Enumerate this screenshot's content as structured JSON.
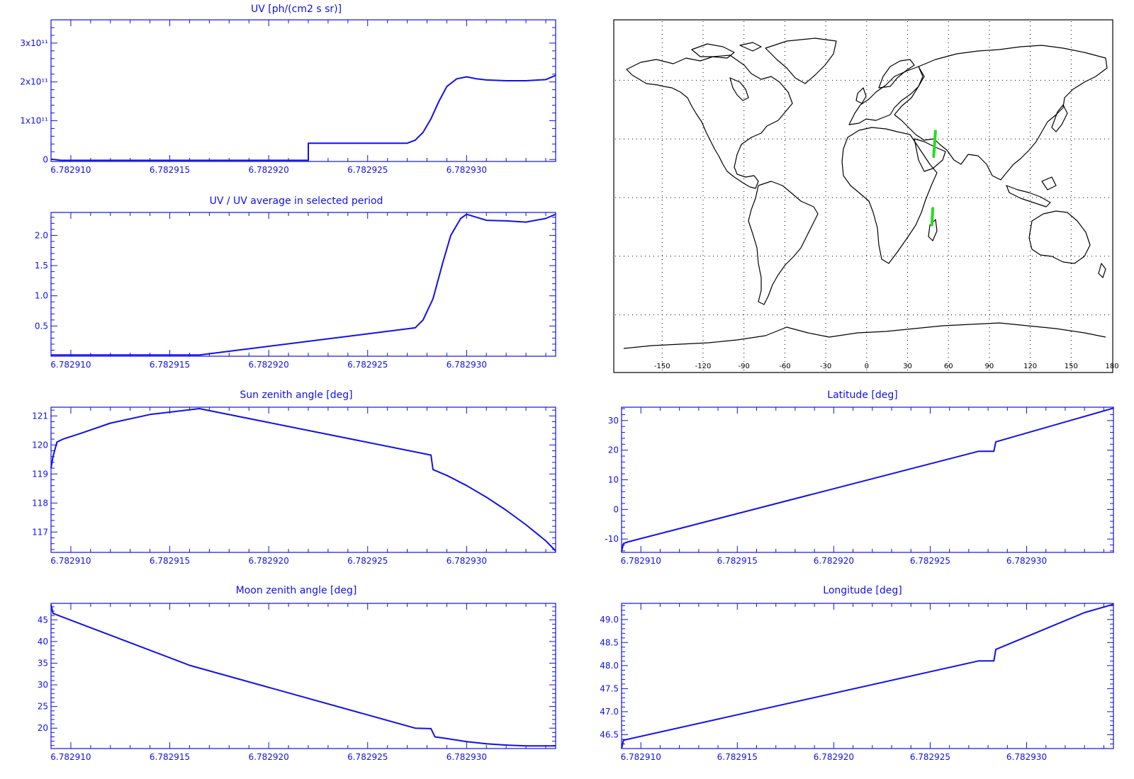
{
  "chart_data": [
    {
      "id": "uv",
      "type": "line",
      "title": "UV [ph/(cm2 s sr)]",
      "xlim": [
        6.782909,
        6.7829345
      ],
      "ylim": [
        -5000000000.0,
        360000000000.0
      ],
      "x_ticks": [
        6.78291,
        6.782915,
        6.78292,
        6.782925,
        6.78293
      ],
      "x_tick_labels": [
        "6.782910",
        "6.782915",
        "6.782920",
        "6.782925",
        "6.782930"
      ],
      "y_ticks": [
        0,
        100000000000.0,
        200000000000.0,
        300000000000.0
      ],
      "y_tick_labels": [
        {
          "m": "0",
          "e": ""
        },
        {
          "m": "1x10",
          "e": "11"
        },
        {
          "m": "2x10",
          "e": "11"
        },
        {
          "m": "3x10",
          "e": "11"
        }
      ],
      "series": [
        {
          "x": [
            6.782909,
            6.7829095,
            6.782922,
            6.782922,
            6.782927,
            6.7829274,
            6.7829278,
            6.7829282,
            6.7829286,
            6.782929,
            6.7829295,
            6.78293,
            6.7829305,
            6.782931,
            6.782932,
            6.782933,
            6.782934,
            6.7829345
          ],
          "y": [
            1000000000.0,
            -2000000000.0,
            -2000000000.0,
            42000000000.0,
            42000000000.0,
            50000000000.0,
            70000000000.0,
            105000000000.0,
            150000000000.0,
            188000000000.0,
            208000000000.0,
            213000000000.0,
            208000000000.0,
            205000000000.0,
            203000000000.0,
            203000000000.0,
            206000000000.0,
            217000000000.0
          ]
        }
      ]
    },
    {
      "id": "uvratio",
      "type": "line",
      "title": "UV / UV average in selected period",
      "xlim": [
        6.782909,
        6.7829345
      ],
      "ylim": [
        0,
        2.38
      ],
      "x_ticks": [
        6.78291,
        6.782915,
        6.78292,
        6.782925,
        6.78293
      ],
      "x_tick_labels": [
        "6.782910",
        "6.782915",
        "6.782920",
        "6.782925",
        "6.782930"
      ],
      "y_ticks": [
        0.5,
        1.0,
        1.5,
        2.0
      ],
      "y_tick_labels": [
        "0.5",
        "1.0",
        "1.5",
        "2.0"
      ],
      "series": [
        {
          "x": [
            6.782909,
            6.7829165,
            6.7829274,
            6.7829278,
            6.7829283,
            6.7829288,
            6.7829292,
            6.7829297,
            6.78293,
            6.7829305,
            6.782931,
            6.782932,
            6.782933,
            6.782934,
            6.7829345
          ],
          "y": [
            0.02,
            0.02,
            0.47,
            0.6,
            0.95,
            1.55,
            2.0,
            2.28,
            2.35,
            2.3,
            2.25,
            2.24,
            2.22,
            2.28,
            2.35
          ]
        }
      ]
    },
    {
      "id": "sza",
      "type": "line",
      "title": "Sun zenith angle [deg]",
      "xlim": [
        6.782909,
        6.7829345
      ],
      "ylim": [
        116.3,
        121.3
      ],
      "x_ticks": [
        6.78291,
        6.782915,
        6.78292,
        6.782925,
        6.78293
      ],
      "x_tick_labels": [
        "6.782910",
        "6.782915",
        "6.782920",
        "6.782925",
        "6.782930"
      ],
      "y_ticks": [
        117,
        118,
        119,
        120,
        121
      ],
      "y_tick_labels": [
        "117",
        "118",
        "119",
        "120",
        "121"
      ],
      "series": [
        {
          "x": [
            6.782909,
            6.7829091,
            6.7829093,
            6.7829096,
            6.7829105,
            6.782912,
            6.782914,
            6.7829165,
            6.7829282,
            6.7829283,
            6.782929,
            6.78293,
            6.782931,
            6.782932,
            6.782933,
            6.782934,
            6.7829345
          ],
          "y": [
            119.2,
            119.6,
            120.1,
            120.2,
            120.4,
            120.75,
            121.05,
            121.25,
            119.65,
            119.15,
            118.95,
            118.6,
            118.2,
            117.75,
            117.25,
            116.7,
            116.35
          ]
        }
      ]
    },
    {
      "id": "mza",
      "type": "line",
      "title": "Moon zenith angle [deg]",
      "xlim": [
        6.782909,
        6.7829345
      ],
      "ylim": [
        15.3,
        48.8
      ],
      "x_ticks": [
        6.78291,
        6.782915,
        6.78292,
        6.782925,
        6.78293
      ],
      "x_tick_labels": [
        "6.782910",
        "6.782915",
        "6.782920",
        "6.782925",
        "6.782930"
      ],
      "y_ticks": [
        20,
        25,
        30,
        35,
        40,
        45
      ],
      "y_tick_labels": [
        "20",
        "25",
        "30",
        "35",
        "40",
        "45"
      ],
      "series": [
        {
          "x": [
            6.782909,
            6.7829091,
            6.7829095,
            6.782916,
            6.7829274,
            6.7829282,
            6.7829284,
            6.782929,
            6.78293,
            6.782931,
            6.782932,
            6.782933,
            6.782934,
            6.7829345
          ],
          "y": [
            48.5,
            46.5,
            45.8,
            34.5,
            20.0,
            19.9,
            18.0,
            17.6,
            16.9,
            16.4,
            16.1,
            15.9,
            15.9,
            15.9
          ]
        }
      ]
    },
    {
      "id": "lat",
      "type": "line",
      "title": "Latitude [deg]",
      "xlim": [
        6.782909,
        6.7829345
      ],
      "ylim": [
        -14.5,
        34.5
      ],
      "x_ticks": [
        6.78291,
        6.782915,
        6.78292,
        6.782925,
        6.78293
      ],
      "x_tick_labels": [
        "6.782910",
        "6.782915",
        "6.782920",
        "6.782925",
        "6.782930"
      ],
      "y_ticks": [
        -10,
        0,
        10,
        20,
        30
      ],
      "y_tick_labels": [
        "-10",
        "0",
        "10",
        "20",
        "30"
      ],
      "series": [
        {
          "x": [
            6.782909,
            6.7829091,
            6.7829093,
            6.7829275,
            6.7829283,
            6.7829284,
            6.7829345
          ],
          "y": [
            -14.2,
            -11.5,
            -11.0,
            19.6,
            19.6,
            22.8,
            34.2
          ]
        }
      ]
    },
    {
      "id": "lon",
      "type": "line",
      "title": "Longitude [deg]",
      "xlim": [
        6.782909,
        6.7829345
      ],
      "ylim": [
        46.2,
        49.35
      ],
      "x_ticks": [
        6.78291,
        6.782915,
        6.78292,
        6.782925,
        6.78293
      ],
      "x_tick_labels": [
        "6.782910",
        "6.782915",
        "6.782920",
        "6.782925",
        "6.782930"
      ],
      "y_ticks": [
        46.5,
        47.0,
        47.5,
        48.0,
        48.5,
        49.0
      ],
      "y_tick_labels": [
        "46.5",
        "47.0",
        "47.5",
        "48.0",
        "48.5",
        "49.0"
      ],
      "series": [
        {
          "x": [
            6.782909,
            6.7829091,
            6.7829093,
            6.7829275,
            6.7829283,
            6.7829284,
            6.782933,
            6.7829345
          ],
          "y": [
            46.2,
            46.38,
            46.4,
            48.1,
            48.1,
            48.35,
            49.15,
            49.33
          ]
        }
      ]
    }
  ],
  "map": {
    "lon_ticks": [
      -150,
      -120,
      -90,
      -60,
      -30,
      0,
      30,
      60,
      90,
      120,
      150,
      180
    ],
    "lon_tick_labels": [
      "-150",
      "-120",
      "-90",
      "-60",
      "-30",
      "0",
      "30",
      "60",
      "90",
      "120",
      "150",
      "180"
    ],
    "track_segments": [
      {
        "lon": [
          50.5,
          49.2
        ],
        "lat": [
          34.0,
          21.0
        ]
      },
      {
        "lon": [
          48.5,
          47.8
        ],
        "lat": [
          -5.5,
          -14.0
        ]
      }
    ]
  }
}
